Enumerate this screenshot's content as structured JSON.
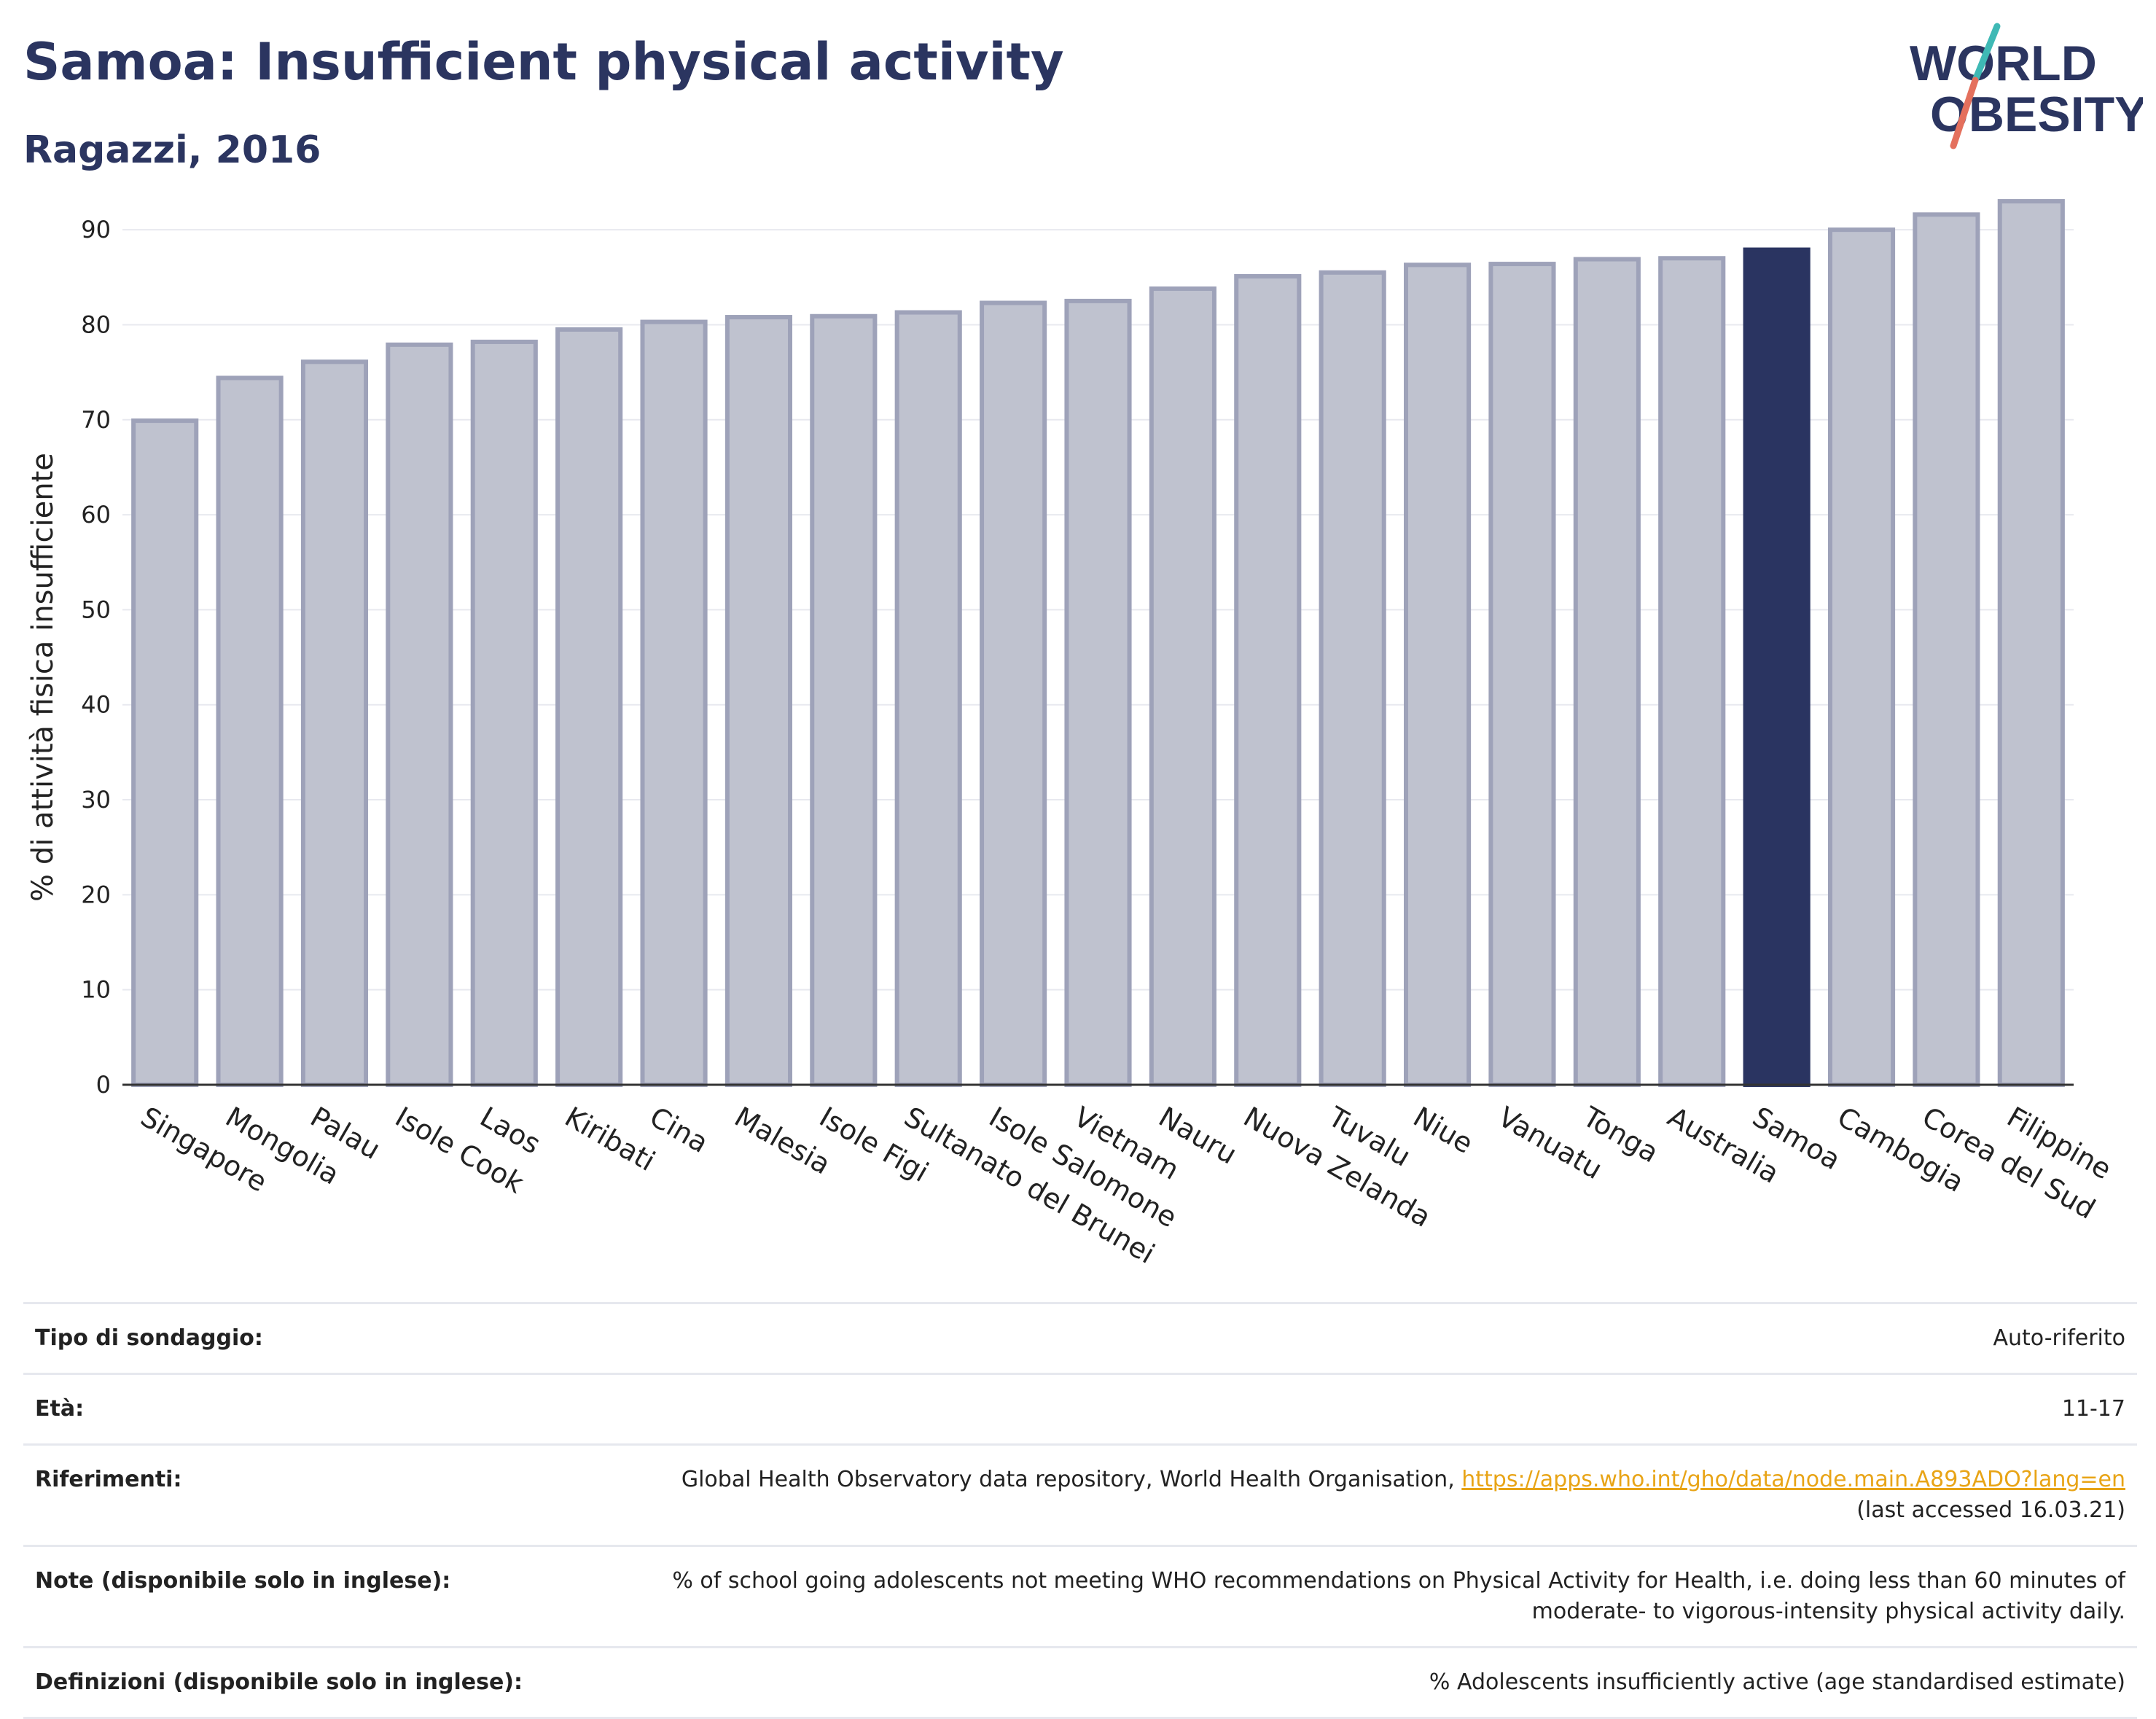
{
  "header": {
    "title": "Samoa: Insufficient physical activity",
    "subtitle": "Ragazzi, 2016"
  },
  "logo": {
    "line1": "WORLD",
    "line2": "OBESITY",
    "accent_colors": [
      "#3fb9b5",
      "#e4705d"
    ]
  },
  "chart_data": {
    "type": "bar",
    "ylabel": "% di attività fisica insufficiente",
    "xlabel": "",
    "ylim": [
      0,
      95
    ],
    "yticks": [
      0,
      10,
      20,
      30,
      40,
      50,
      60,
      70,
      80,
      90
    ],
    "grid": true,
    "highlight": "Samoa",
    "colors": {
      "bar": "#bfc2cf",
      "bar_border": "#9ea2b9",
      "highlight": "#2a3461",
      "text": "#222222"
    },
    "categories": [
      "Singapore",
      "Mongolia",
      "Palau",
      "Isole Cook",
      "Laos",
      "Kiribati",
      "Cina",
      "Malesia",
      "Isole Figi",
      "Sultanato del Brunei",
      "Isole Salomone",
      "Vietnam",
      "Nauru",
      "Nuova Zelanda",
      "Tuvalu",
      "Niue",
      "Vanuatu",
      "Tonga",
      "Australia",
      "Samoa",
      "Cambogia",
      "Corea del Sud",
      "Filippine"
    ],
    "values": [
      69.9,
      74.4,
      76.1,
      77.9,
      78.2,
      79.5,
      80.3,
      80.8,
      80.9,
      81.3,
      82.3,
      82.5,
      83.8,
      85.1,
      85.5,
      86.3,
      86.4,
      86.9,
      87.0,
      87.9,
      90.0,
      91.6,
      93.0
    ]
  },
  "info": {
    "survey_type": {
      "label": "Tipo di sondaggio:",
      "value": "Auto-riferito"
    },
    "age": {
      "label": "Età:",
      "value": "11-17"
    },
    "references": {
      "label": "Riferimenti:",
      "text": "Global Health Observatory data repository, World Health Organisation, ",
      "link": "https://apps.who.int/gho/data/node.main.A893ADO?lang=en",
      "accessed": "(last accessed 16.03.21)"
    },
    "notes": {
      "label": "Note (disponibile solo in inglese):",
      "value": "% of school going adolescents not meeting WHO recommendations on Physical Activity for Health, i.e. doing less than 60 minutes of moderate- to vigorous-intensity physical activity daily."
    },
    "definitions": {
      "label": "Definizioni (disponibile solo in inglese):",
      "value": "% Adolescents insufficiently active (age standardised estimate)"
    }
  }
}
